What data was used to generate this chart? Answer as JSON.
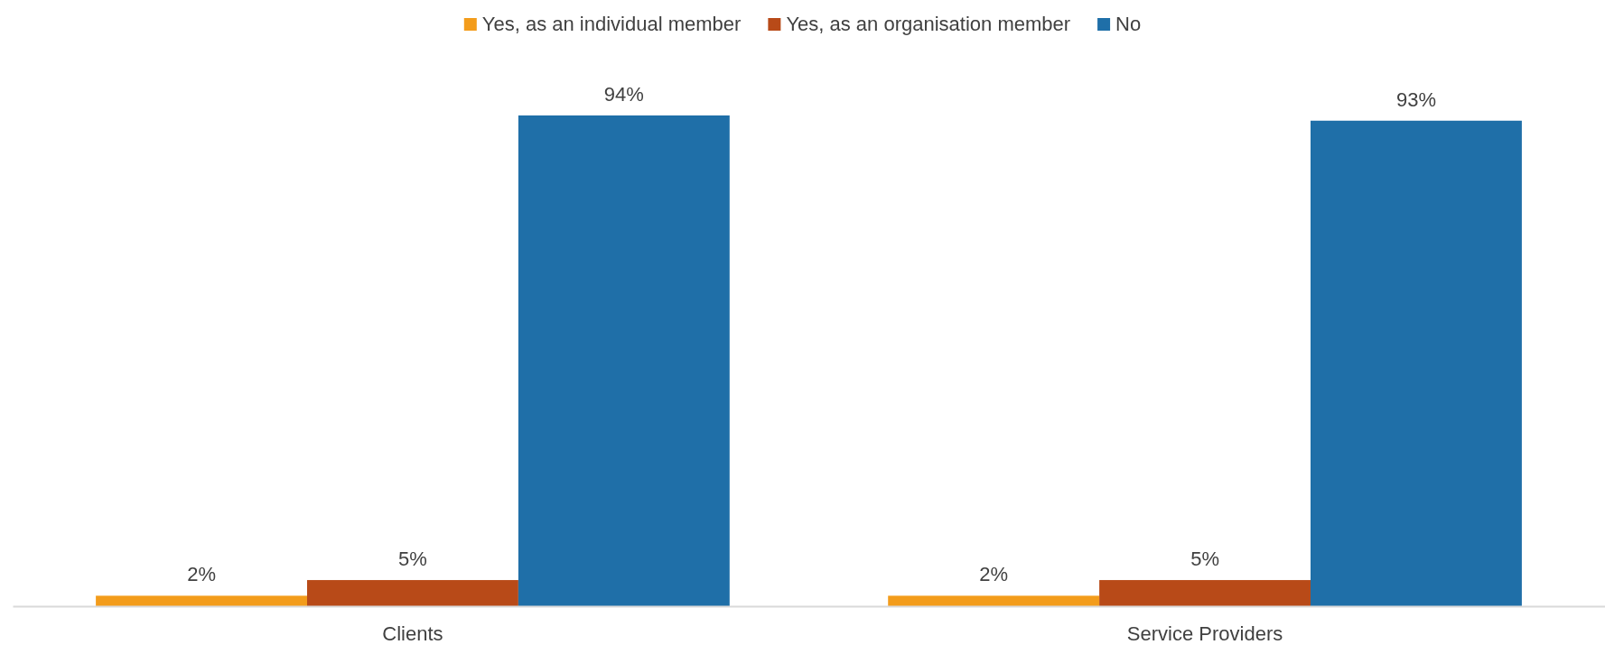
{
  "chart_data": {
    "type": "bar",
    "categories": [
      "Clients",
      "Service Providers"
    ],
    "series": [
      {
        "name": "Yes, as an individual member",
        "color": "#f39c1b",
        "values": [
          2,
          2
        ],
        "value_labels": [
          "2%",
          "2%"
        ]
      },
      {
        "name": "Yes, as an organisation member",
        "color": "#b84a18",
        "values": [
          5,
          5
        ],
        "value_labels": [
          "5%",
          "5%"
        ]
      },
      {
        "name": "No",
        "color": "#1f6fa8",
        "values": [
          94,
          93
        ],
        "value_labels": [
          "94%",
          "93%"
        ]
      }
    ],
    "legend": "top"
  }
}
